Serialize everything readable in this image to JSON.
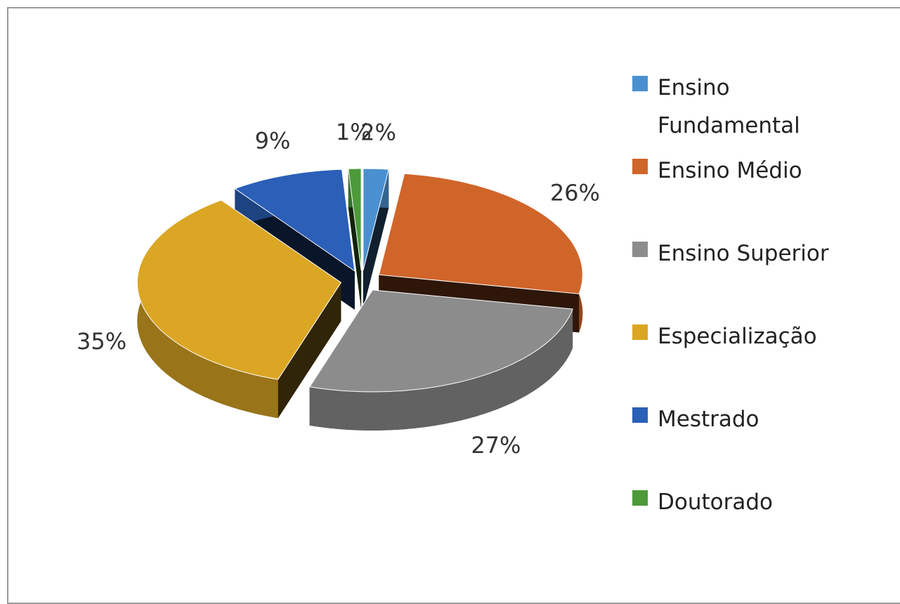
{
  "chart_data": {
    "type": "pie",
    "categories": [
      "Ensino Fundamental",
      "Ensino Médio",
      "Ensino Superior",
      "Especialização",
      "Mestrado",
      "Doutorado"
    ],
    "values": [
      2,
      26,
      27,
      35,
      9,
      1
    ],
    "value_labels": [
      "2%",
      "26%",
      "27%",
      "35%",
      "9%",
      "1%"
    ],
    "colors": [
      "#4a90d0",
      "#d0652a",
      "#8c8c8c",
      "#dba624",
      "#2b5fb8",
      "#4c9a3a"
    ],
    "legend": "right"
  }
}
